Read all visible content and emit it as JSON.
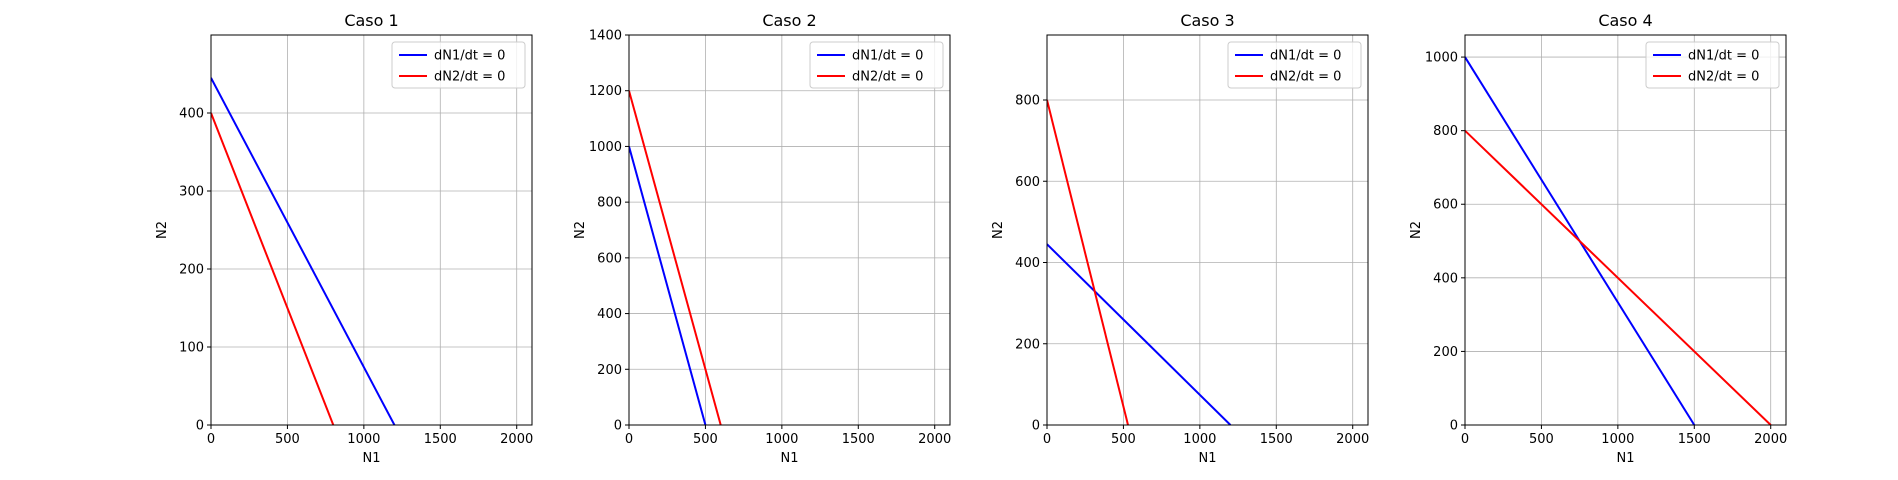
{
  "colors": {
    "blue": "#0000ff",
    "red": "#ff0000",
    "grid": "#b0b0b0"
  },
  "chart_data": [
    {
      "type": "line",
      "title": "Caso 1",
      "xlabel": "N1",
      "ylabel": "N2",
      "xlim": [
        0,
        2100
      ],
      "ylim": [
        0,
        500
      ],
      "xticks": [
        0,
        500,
        1000,
        1500,
        2000
      ],
      "yticks": [
        0,
        100,
        200,
        300,
        400
      ],
      "grid": true,
      "legend": "top-right",
      "series": [
        {
          "name": "dN1/dt = 0",
          "color": "blue",
          "x": [
            0,
            1200
          ],
          "y": [
            445,
            0
          ]
        },
        {
          "name": "dN2/dt = 0",
          "color": "red",
          "x": [
            0,
            800
          ],
          "y": [
            400,
            0
          ]
        }
      ]
    },
    {
      "type": "line",
      "title": "Caso 2",
      "xlabel": "N1",
      "ylabel": "N2",
      "xlim": [
        0,
        2100
      ],
      "ylim": [
        0,
        1400
      ],
      "xticks": [
        0,
        500,
        1000,
        1500,
        2000
      ],
      "yticks": [
        0,
        200,
        400,
        600,
        800,
        1000,
        1200,
        1400
      ],
      "grid": true,
      "legend": "top-right",
      "series": [
        {
          "name": "dN1/dt = 0",
          "color": "blue",
          "x": [
            0,
            500
          ],
          "y": [
            1000,
            0
          ]
        },
        {
          "name": "dN2/dt = 0",
          "color": "red",
          "x": [
            0,
            600
          ],
          "y": [
            1200,
            0
          ]
        }
      ]
    },
    {
      "type": "line",
      "title": "Caso 3",
      "xlabel": "N1",
      "ylabel": "N2",
      "xlim": [
        0,
        2100
      ],
      "ylim": [
        0,
        960
      ],
      "xticks": [
        0,
        500,
        1000,
        1500,
        2000
      ],
      "yticks": [
        0,
        200,
        400,
        600,
        800
      ],
      "grid": true,
      "legend": "top-right",
      "series": [
        {
          "name": "dN1/dt = 0",
          "color": "blue",
          "x": [
            0,
            1200
          ],
          "y": [
            445,
            0
          ]
        },
        {
          "name": "dN2/dt = 0",
          "color": "red",
          "x": [
            0,
            530
          ],
          "y": [
            800,
            0
          ]
        }
      ]
    },
    {
      "type": "line",
      "title": "Caso 4",
      "xlabel": "N1",
      "ylabel": "N2",
      "xlim": [
        0,
        2100
      ],
      "ylim": [
        0,
        1060
      ],
      "xticks": [
        0,
        500,
        1000,
        1500,
        2000
      ],
      "yticks": [
        0,
        200,
        400,
        600,
        800,
        1000
      ],
      "grid": true,
      "legend": "top-right",
      "series": [
        {
          "name": "dN1/dt = 0",
          "color": "blue",
          "x": [
            0,
            1500
          ],
          "y": [
            1000,
            0
          ]
        },
        {
          "name": "dN2/dt = 0",
          "color": "red",
          "x": [
            0,
            2000
          ],
          "y": [
            800,
            0
          ]
        }
      ]
    }
  ]
}
